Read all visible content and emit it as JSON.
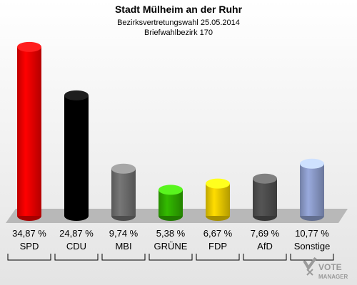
{
  "header": {
    "title": "Stadt Mülheim an der Ruhr",
    "subtitle1": "Bezirksvertretungswahl 25.05.2014",
    "subtitle2": "Briefwahlbezirk 170"
  },
  "chart_data": {
    "type": "bar",
    "categories": [
      "SPD",
      "CDU",
      "MBI",
      "GRÜNE",
      "FDP",
      "AfD",
      "Sonstige"
    ],
    "values": [
      34.87,
      24.87,
      9.74,
      5.38,
      6.67,
      7.69,
      10.77
    ],
    "value_labels": [
      "34,87 %",
      "24,87 %",
      "9,74 %",
      "5,38 %",
      "6,67 %",
      "7,69 %",
      "10,77 %"
    ],
    "colors": [
      "#ff0000",
      "#000000",
      "#777777",
      "#33bb00",
      "#ffdd00",
      "#555555",
      "#99aadd"
    ],
    "ylim": [
      0,
      35
    ],
    "title": "Stadt Mülheim an der Ruhr",
    "xlabel": "",
    "ylabel": ""
  },
  "logo": {
    "line1": "VOTE",
    "line2": "MANAGER"
  }
}
